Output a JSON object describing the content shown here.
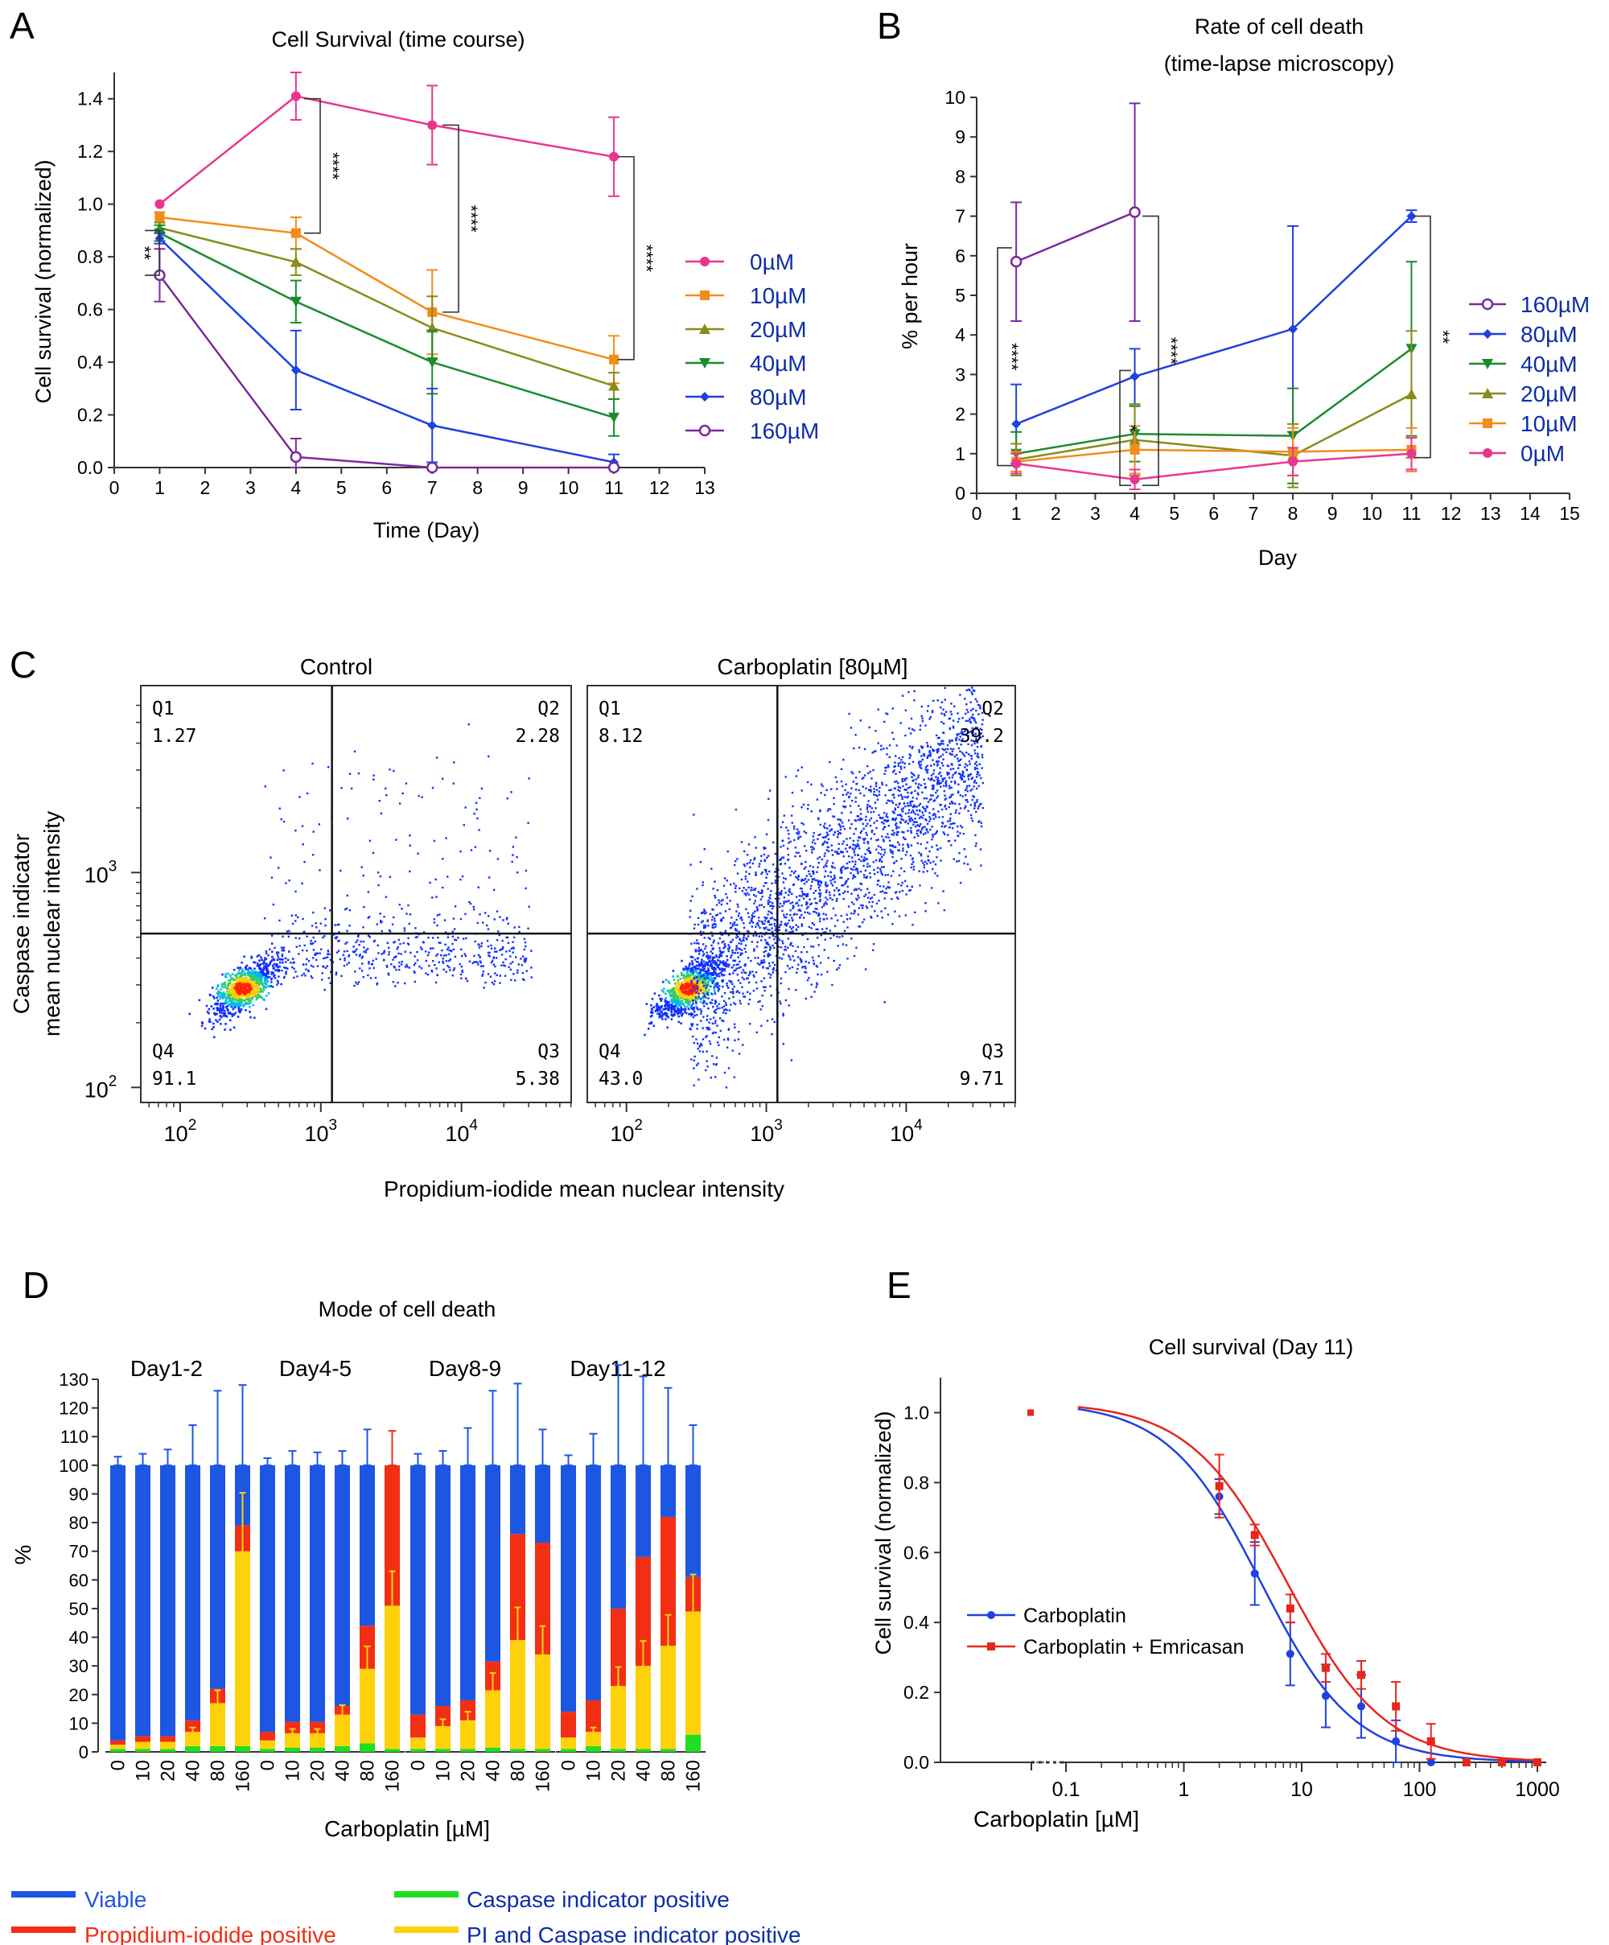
{
  "panel_letters": [
    "A",
    "B",
    "C",
    "D",
    "E"
  ],
  "chart_data": [
    {
      "panel": "A",
      "type": "line",
      "title": "Cell Survival (time course)",
      "xlabel": "Time (Day)",
      "ylabel": "Cell survival (normalized)",
      "xlim": [
        0,
        13
      ],
      "ylim": [
        0,
        1.5
      ],
      "xticks": [
        "0",
        "1",
        "2",
        "3",
        "4",
        "5",
        "6",
        "7",
        "8",
        "9",
        "10",
        "11",
        "12",
        "13"
      ],
      "yticks": [
        "0.0",
        "0.2",
        "0.4",
        "0.6",
        "0.8",
        "1.0",
        "1.2",
        "1.4"
      ],
      "legend_position": "right",
      "x": [
        1,
        4,
        7,
        11
      ],
      "series": [
        {
          "name": "0µM",
          "color": "#e8368f",
          "marker": "circle",
          "values": [
            1.0,
            1.41,
            1.3,
            1.18
          ],
          "err": [
            0,
            0.09,
            0.15,
            0.15
          ]
        },
        {
          "name": "10µM",
          "color": "#f28c1b",
          "marker": "square",
          "values": [
            0.95,
            0.89,
            0.59,
            0.41
          ],
          "err": [
            0.02,
            0.06,
            0.16,
            0.09
          ]
        },
        {
          "name": "20µM",
          "color": "#8b8b1a",
          "marker": "triangle-up",
          "values": [
            0.91,
            0.78,
            0.53,
            0.31
          ],
          "err": [
            0.02,
            0.05,
            0.12,
            0.05
          ]
        },
        {
          "name": "40µM",
          "color": "#1a8c2e",
          "marker": "triangle-down",
          "values": [
            0.89,
            0.63,
            0.4,
            0.19
          ],
          "err": [
            0.03,
            0.08,
            0.12,
            0.07
          ]
        },
        {
          "name": "80µM",
          "color": "#2040e0",
          "marker": "diamond",
          "values": [
            0.87,
            0.37,
            0.16,
            0.02
          ],
          "err": [
            0.02,
            0.15,
            0.14,
            0.03
          ]
        },
        {
          "name": "160µM",
          "color": "#7b2a9c",
          "marker": "open-circle",
          "values": [
            0.73,
            0.04,
            0.0,
            0.0
          ],
          "err": [
            0.1,
            0.07,
            0.0,
            0.0
          ]
        }
      ],
      "significance": [
        "**",
        "****",
        "****",
        "****"
      ]
    },
    {
      "panel": "B",
      "type": "line",
      "title": "Rate of cell death",
      "subtitle": "(time-lapse microscopy)",
      "xlabel": "Day",
      "ylabel": "% per hour",
      "xlim": [
        0,
        15
      ],
      "ylim": [
        0,
        10
      ],
      "xticks": [
        "0",
        "1",
        "2",
        "3",
        "4",
        "5",
        "6",
        "7",
        "8",
        "9",
        "10",
        "11",
        "12",
        "13",
        "14",
        "15"
      ],
      "yticks": [
        "0",
        "1",
        "2",
        "3",
        "4",
        "5",
        "6",
        "7",
        "8",
        "9",
        "10"
      ],
      "legend_position": "right",
      "series": [
        {
          "name": "160µM",
          "color": "#7b2a9c",
          "marker": "open-circle",
          "x": [
            1,
            4
          ],
          "values": [
            5.85,
            7.1
          ],
          "err": [
            1.5,
            2.75
          ]
        },
        {
          "name": "80µM",
          "color": "#2040e0",
          "marker": "diamond",
          "x": [
            1,
            4,
            8,
            11
          ],
          "values": [
            1.75,
            2.95,
            4.15,
            7.0
          ],
          "err": [
            1.0,
            0.7,
            2.6,
            0.15
          ]
        },
        {
          "name": "40µM",
          "color": "#1a8c2e",
          "marker": "triangle-down",
          "x": [
            1,
            4,
            8,
            11
          ],
          "values": [
            1.0,
            1.5,
            1.45,
            3.65
          ],
          "err": [
            0.55,
            0.7,
            1.2,
            2.2
          ]
        },
        {
          "name": "20µM",
          "color": "#8b8b1a",
          "marker": "triangle-up",
          "x": [
            1,
            4,
            8,
            11
          ],
          "values": [
            0.85,
            1.35,
            0.95,
            2.5
          ],
          "err": [
            0.4,
            0.9,
            0.8,
            1.6
          ]
        },
        {
          "name": "10µM",
          "color": "#f28c1b",
          "marker": "square",
          "x": [
            1,
            4,
            8,
            11
          ],
          "values": [
            0.8,
            1.1,
            1.05,
            1.1
          ],
          "err": [
            0.25,
            0.6,
            0.6,
            0.55
          ]
        },
        {
          "name": "0µM",
          "color": "#e8368f",
          "marker": "circle",
          "x": [
            1,
            4,
            8,
            11
          ],
          "values": [
            0.75,
            0.35,
            0.8,
            1.0
          ],
          "err": [
            0.25,
            0.25,
            0.35,
            0.4
          ]
        }
      ],
      "significance": [
        "****",
        "*",
        "****",
        "**"
      ]
    },
    {
      "panel": "C",
      "type": "scatter",
      "xlabel": "Propidium-iodide mean nuclear intensity",
      "ylabel": "Caspase indicator",
      "ylabel2": "mean nuclear intensity",
      "x_scale": "log",
      "y_scale": "log",
      "xticks": [
        "10",
        "10",
        "10"
      ],
      "xtick_exponents": [
        "2",
        "3",
        "4"
      ],
      "yticks": [
        "10",
        "10"
      ],
      "ytick_exponents": [
        "3",
        "2"
      ],
      "gates": {
        "x": 1200,
        "y": 520
      },
      "plots": [
        {
          "title": "Control",
          "quadrants": {
            "Q1": "1.27",
            "Q2": "2.28",
            "Q3": "5.38",
            "Q4": "91.1"
          }
        },
        {
          "title": "Carboplatin [80µM]",
          "quadrants": {
            "Q1": "8.12",
            "Q2": "39.2",
            "Q3": "9.71",
            "Q4": "43.0"
          }
        }
      ]
    },
    {
      "panel": "D",
      "type": "bar",
      "title": "Mode of cell death",
      "ylabel": "%",
      "xlabel": "Carboplatin [µM]",
      "ylim": [
        0,
        130
      ],
      "yticks": [
        "0",
        "10",
        "20",
        "30",
        "40",
        "50",
        "60",
        "70",
        "80",
        "90",
        "100",
        "110",
        "120",
        "130"
      ],
      "stacked": true,
      "groups": [
        "Day1-2",
        "Day4-5",
        "Day8-9",
        "Day11-12"
      ],
      "categories": [
        "0",
        "10",
        "20",
        "40",
        "80",
        "160"
      ],
      "legend": [
        {
          "name": "Viable",
          "color": "#1d56e3"
        },
        {
          "name": "Propidium-iodide positive",
          "color": "#f22e14"
        },
        {
          "name": "Caspase indicator positive",
          "color": "#22dd22"
        },
        {
          "name": "PI and Caspase indicator positive",
          "color": "#fdd20a"
        }
      ],
      "series_order": [
        "Caspase indicator positive",
        "PI and Caspase indicator positive",
        "Propidium-iodide positive",
        "Viable"
      ],
      "data": [
        [
          [
            1,
            1.5,
            1.5,
            96,
            3
          ],
          [
            1,
            2.5,
            2,
            94.5,
            4
          ],
          [
            1,
            2.5,
            2,
            94.5,
            5.5
          ],
          [
            2,
            5,
            4,
            89,
            14
          ],
          [
            2,
            15,
            5,
            78,
            26
          ],
          [
            2,
            68,
            9,
            21,
            28
          ]
        ],
        [
          [
            1,
            3,
            3,
            93,
            2.5
          ],
          [
            1.5,
            5,
            4,
            89.5,
            5
          ],
          [
            1.5,
            5,
            4,
            89.5,
            4.5
          ],
          [
            2,
            11,
            3,
            84,
            5
          ],
          [
            3,
            26,
            15,
            56,
            12.5
          ],
          [
            1,
            50,
            49,
            0,
            12
          ]
        ],
        [
          [
            1,
            4,
            8,
            87,
            4
          ],
          [
            1,
            8,
            7,
            84,
            5
          ],
          [
            1,
            10,
            7,
            82,
            13
          ],
          [
            1.5,
            20,
            10,
            68.5,
            26
          ],
          [
            1,
            38,
            37,
            24,
            28.5
          ],
          [
            1,
            33,
            39,
            27,
            12.5
          ]
        ],
        [
          [
            1,
            4,
            9,
            86,
            3.5
          ],
          [
            2,
            5,
            11,
            82,
            11
          ],
          [
            1,
            22,
            27,
            50,
            35
          ],
          [
            1,
            29,
            38,
            32,
            31
          ],
          [
            1,
            36,
            45,
            18,
            27
          ],
          [
            6,
            43,
            12,
            39,
            14
          ]
        ]
      ]
    },
    {
      "panel": "E",
      "type": "scatter",
      "title": "Cell survival (Day 11)",
      "xlabel": "Carboplatin [µM]",
      "ylabel": "Cell survival (normalized)",
      "x_scale": "log",
      "ylim": [
        0,
        1.1
      ],
      "xticks": [
        "0.1",
        "1",
        "10",
        "100",
        "1000"
      ],
      "yticks": [
        "0.0",
        "0.2",
        "0.4",
        "0.6",
        "0.8",
        "1.0"
      ],
      "legend_position": "lower-left",
      "control_x_label": "",
      "series": [
        {
          "name": "Carboplatin",
          "color": "#2040e0",
          "x": [
            2,
            4,
            8,
            16,
            32,
            63,
            125,
            250,
            500,
            1000
          ],
          "values": [
            0.76,
            0.54,
            0.31,
            0.19,
            0.16,
            0.06,
            0.0,
            0.0,
            0.0,
            0.0
          ],
          "err": [
            0.05,
            0.09,
            0.09,
            0.09,
            0.09,
            0.06,
            0.0,
            0.0,
            0.0,
            0.0
          ],
          "control": 1.0,
          "ic50": 4.5,
          "hill": 1.1
        },
        {
          "name": "Carboplatin + Emricasan",
          "color": "#e8261c",
          "x": [
            2,
            4,
            8,
            16,
            32,
            63,
            125,
            250,
            500,
            1000
          ],
          "values": [
            0.79,
            0.65,
            0.44,
            0.27,
            0.25,
            0.16,
            0.06,
            0.0,
            0.0,
            0.0
          ],
          "err": [
            0.09,
            0.03,
            0.04,
            0.04,
            0.04,
            0.07,
            0.05,
            0.0,
            0.0,
            0.0
          ],
          "control": 1.0,
          "ic50": 7.5,
          "hill": 1.05
        }
      ]
    }
  ]
}
